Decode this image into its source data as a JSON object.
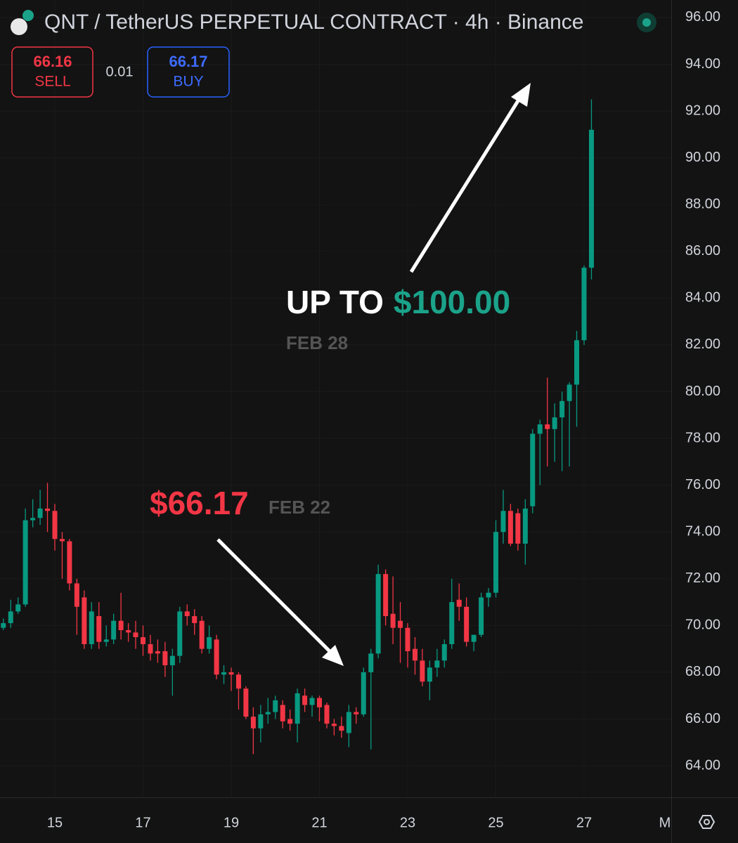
{
  "header": {
    "title": "QNT / TetherUS PERPETUAL CONTRACT · 4h · Binance"
  },
  "order_panel": {
    "sell_price": 66.16,
    "sell_label": "SELL",
    "spread": 0.01,
    "buy_price": 66.17,
    "buy_label": "BUY"
  },
  "annotations": {
    "target_prefix": "UP TO",
    "target_price": "$100.00",
    "target_date": "FEB 28",
    "entry_price": "$66.17",
    "entry_date": "FEB 22"
  },
  "chart_data": {
    "type": "candlestick",
    "up_color": "#089981",
    "down_color": "#f23645",
    "x": [
      13.833,
      14,
      14.167,
      14.333,
      14.5,
      14.667,
      14.833,
      15,
      15.167,
      15.333,
      15.5,
      15.667,
      15.833,
      16,
      16.167,
      16.333,
      16.5,
      16.667,
      16.833,
      17,
      17.167,
      17.333,
      17.5,
      17.667,
      17.833,
      18,
      18.167,
      18.333,
      18.5,
      18.667,
      18.833,
      19,
      19.167,
      19.333,
      19.5,
      19.667,
      19.833,
      20,
      20.167,
      20.333,
      20.5,
      20.667,
      20.833,
      21,
      21.167,
      21.333,
      21.5,
      21.667,
      21.833,
      22,
      22.167,
      22.333,
      22.5,
      22.667,
      22.833,
      23,
      23.167,
      23.333,
      23.5,
      23.667,
      23.833,
      24,
      24.167,
      24.333,
      24.5,
      24.667,
      24.833,
      25,
      25.167,
      25.333,
      25.5,
      25.667,
      25.833,
      26,
      26.167,
      26.333,
      26.5,
      26.667,
      26.833,
      27,
      27.167
    ],
    "open": [
      69.9,
      70.1,
      70.6,
      70.9,
      74.5,
      74.6,
      75.0,
      74.9,
      73.7,
      73.6,
      71.8,
      71.2,
      69.2,
      70.4,
      69.3,
      69.4,
      70.2,
      69.8,
      69.7,
      69.5,
      69.2,
      68.9,
      68.9,
      68.3,
      68.7,
      70.6,
      70.4,
      70.2,
      69.0,
      69.4,
      67.9,
      68.0,
      67.9,
      67.3,
      66.1,
      65.6,
      66.2,
      66.3,
      66.6,
      66.0,
      65.8,
      67.0,
      66.6,
      66.9,
      66.6,
      65.8,
      65.7,
      65.4,
      66.3,
      66.2,
      68.0,
      68.8,
      72.2,
      70.5,
      70.2,
      69.9,
      69.0,
      68.5,
      67.6,
      68.2,
      68.5,
      69.2,
      71.1,
      70.8,
      69.3,
      69.6,
      71.2,
      71.4,
      74.0,
      74.9,
      74.8,
      73.5,
      75.1,
      78.2,
      78.6,
      78.4,
      78.9,
      79.6,
      80.3,
      82.2,
      85.3
    ],
    "high": [
      70.3,
      71.1,
      71.2,
      75.0,
      75.4,
      75.8,
      76.1,
      75.2,
      74.0,
      73.7,
      72.0,
      71.5,
      71.0,
      71.0,
      70.0,
      70.5,
      71.4,
      70.1,
      70.2,
      70.0,
      69.6,
      69.4,
      69.3,
      69.0,
      70.8,
      70.9,
      70.7,
      70.4,
      70.0,
      69.6,
      68.3,
      68.2,
      68.0,
      67.4,
      66.5,
      66.6,
      66.9,
      67.0,
      66.8,
      66.4,
      67.3,
      67.3,
      67.0,
      67.0,
      66.7,
      66.0,
      66.1,
      66.6,
      66.5,
      68.2,
      69.0,
      72.6,
      72.4,
      72.1,
      71.0,
      70.1,
      69.5,
      69.0,
      68.5,
      69.0,
      69.4,
      72.0,
      71.8,
      71.2,
      69.6,
      71.4,
      71.6,
      74.5,
      75.8,
      75.2,
      75.0,
      75.4,
      78.4,
      78.8,
      80.6,
      79.5,
      80.0,
      80.4,
      82.6,
      85.4,
      92.5
    ],
    "low": [
      69.8,
      69.9,
      70.5,
      70.8,
      74.2,
      74.3,
      74.0,
      73.2,
      72.0,
      71.5,
      69.6,
      69.0,
      69.0,
      69.0,
      69.1,
      69.2,
      69.4,
      69.3,
      69.0,
      68.7,
      68.5,
      68.4,
      67.8,
      67.0,
      68.4,
      70.0,
      69.6,
      68.8,
      68.8,
      67.7,
      67.5,
      67.2,
      66.4,
      66.0,
      64.5,
      65.0,
      65.8,
      66.0,
      65.6,
      65.5,
      65.0,
      66.3,
      66.1,
      65.9,
      65.6,
      65.3,
      65.2,
      64.8,
      65.8,
      66.1,
      64.7,
      68.6,
      70.0,
      69.2,
      68.4,
      68.2,
      67.9,
      67.4,
      66.8,
      67.8,
      68.2,
      69.0,
      70.2,
      69.1,
      68.9,
      69.5,
      70.8,
      71.2,
      73.5,
      73.4,
      73.2,
      72.6,
      74.8,
      76.0,
      76.8,
      77.0,
      76.6,
      76.8,
      78.5,
      82.0,
      84.8
    ],
    "close": [
      70.1,
      70.6,
      70.9,
      74.5,
      74.6,
      75.0,
      74.9,
      73.7,
      73.6,
      71.8,
      70.8,
      69.2,
      70.6,
      69.3,
      69.4,
      70.2,
      69.8,
      69.7,
      69.5,
      69.2,
      68.8,
      68.8,
      68.3,
      68.7,
      70.6,
      70.4,
      70.1,
      69.0,
      69.5,
      67.9,
      68.0,
      67.9,
      67.3,
      66.1,
      65.6,
      66.2,
      66.3,
      66.8,
      65.9,
      65.8,
      67.1,
      66.6,
      66.9,
      66.5,
      65.8,
      65.7,
      65.5,
      66.3,
      66.2,
      68.0,
      68.8,
      72.2,
      70.4,
      69.9,
      69.9,
      68.9,
      68.5,
      67.6,
      68.2,
      68.5,
      69.2,
      71.0,
      70.8,
      69.3,
      69.6,
      71.2,
      71.4,
      74.0,
      74.9,
      73.5,
      73.5,
      75.0,
      78.2,
      78.6,
      78.4,
      78.9,
      79.6,
      80.3,
      82.2,
      85.3,
      91.2
    ],
    "xlim": [
      13.757,
      28.976
    ],
    "xticks": [
      15,
      17,
      19,
      21,
      23,
      25,
      27,
      {
        "value": 29,
        "label": "M"
      }
    ],
    "ylim": [
      62.65,
      96.75
    ],
    "yticks": [
      {
        "value": 64,
        "label": "64.00"
      },
      {
        "value": 66,
        "label": "66.00"
      },
      {
        "value": 68,
        "label": "68.00"
      },
      {
        "value": 70,
        "label": "70.00"
      },
      {
        "value": 72,
        "label": "72.00"
      },
      {
        "value": 74,
        "label": "74.00"
      },
      {
        "value": 76,
        "label": "76.00"
      },
      {
        "value": 78,
        "label": "78.00"
      },
      {
        "value": 80,
        "label": "80.00"
      },
      {
        "value": 82,
        "label": "82.00"
      },
      {
        "value": 84,
        "label": "84.00"
      },
      {
        "value": 86,
        "label": "86.00"
      },
      {
        "value": 88,
        "label": "88.00"
      },
      {
        "value": 90,
        "label": "90.00"
      },
      {
        "value": 92,
        "label": "92.00"
      },
      {
        "value": 94,
        "label": "94.00"
      },
      {
        "value": 96,
        "label": "96.00"
      }
    ],
    "grid": true
  }
}
